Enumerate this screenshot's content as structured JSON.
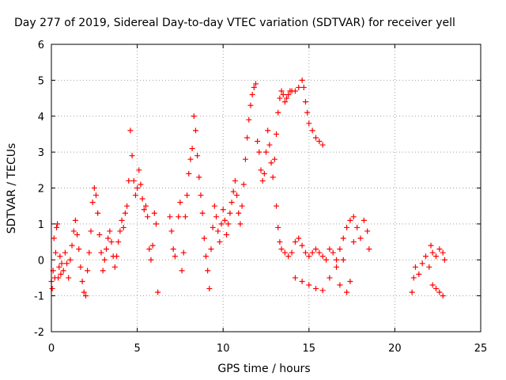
{
  "chart_data": {
    "type": "scatter",
    "title": "Day 277 of 2019, Sidereal Day-to-day VTEC variation (SDTVAR) for receiver yell",
    "xlabel": "GPS time / hours",
    "ylabel": "SDTVAR / TECUs",
    "xlim": [
      0,
      25
    ],
    "ylim": [
      -2,
      6
    ],
    "xticks": [
      0,
      5,
      10,
      15,
      20,
      25
    ],
    "yticks": [
      -2,
      -1,
      0,
      1,
      2,
      3,
      4,
      5,
      6
    ],
    "xtick_labels": [
      "0",
      "5",
      "10",
      "15",
      "20",
      "25"
    ],
    "ytick_labels": [
      "-2",
      "-1",
      "0",
      "1",
      "2",
      "3",
      "4",
      "5",
      "6"
    ],
    "grid": true,
    "marker": "+",
    "color": "#ff0000",
    "series": [
      {
        "name": "SDTVAR",
        "points": [
          [
            0.0,
            -0.6
          ],
          [
            0.05,
            -0.8
          ],
          [
            0.1,
            -0.3
          ],
          [
            0.15,
            0.6
          ],
          [
            0.2,
            -0.5
          ],
          [
            0.25,
            0.2
          ],
          [
            0.3,
            0.9
          ],
          [
            0.35,
            1.0
          ],
          [
            0.4,
            -0.5
          ],
          [
            0.45,
            -0.2
          ],
          [
            0.5,
            0.1
          ],
          [
            0.55,
            -0.4
          ],
          [
            0.6,
            -0.1
          ],
          [
            0.7,
            -0.3
          ],
          [
            0.8,
            0.2
          ],
          [
            0.9,
            -0.1
          ],
          [
            1.0,
            -0.5
          ],
          [
            1.1,
            0.0
          ],
          [
            1.2,
            0.4
          ],
          [
            1.3,
            0.8
          ],
          [
            1.4,
            1.1
          ],
          [
            1.5,
            0.7
          ],
          [
            1.6,
            0.3
          ],
          [
            1.7,
            -0.2
          ],
          [
            1.8,
            -0.6
          ],
          [
            1.9,
            -0.9
          ],
          [
            2.0,
            -1.0
          ],
          [
            2.1,
            -0.3
          ],
          [
            2.2,
            0.2
          ],
          [
            2.3,
            0.8
          ],
          [
            2.4,
            1.6
          ],
          [
            2.5,
            2.0
          ],
          [
            2.6,
            1.8
          ],
          [
            2.7,
            1.3
          ],
          [
            2.8,
            0.7
          ],
          [
            2.9,
            0.2
          ],
          [
            3.0,
            -0.3
          ],
          [
            3.1,
            0.0
          ],
          [
            3.2,
            0.3
          ],
          [
            3.3,
            0.6
          ],
          [
            3.4,
            0.8
          ],
          [
            3.5,
            0.5
          ],
          [
            3.6,
            0.1
          ],
          [
            3.7,
            -0.2
          ],
          [
            3.8,
            0.1
          ],
          [
            3.9,
            0.5
          ],
          [
            4.0,
            0.8
          ],
          [
            4.1,
            1.1
          ],
          [
            4.2,
            0.9
          ],
          [
            4.3,
            1.3
          ],
          [
            4.4,
            1.5
          ],
          [
            4.5,
            2.2
          ],
          [
            4.6,
            3.6
          ],
          [
            4.7,
            2.9
          ],
          [
            4.8,
            2.2
          ],
          [
            4.9,
            1.8
          ],
          [
            5.0,
            2.0
          ],
          [
            5.1,
            2.5
          ],
          [
            5.2,
            2.1
          ],
          [
            5.3,
            1.7
          ],
          [
            5.4,
            1.4
          ],
          [
            5.5,
            1.5
          ],
          [
            5.6,
            1.2
          ],
          [
            5.7,
            0.3
          ],
          [
            5.8,
            0.0
          ],
          [
            5.9,
            0.4
          ],
          [
            6.0,
            1.3
          ],
          [
            6.1,
            1.0
          ],
          [
            6.2,
            -0.9
          ],
          [
            6.9,
            1.2
          ],
          [
            7.0,
            0.8
          ],
          [
            7.1,
            0.3
          ],
          [
            7.2,
            0.1
          ],
          [
            7.4,
            1.2
          ],
          [
            7.5,
            1.6
          ],
          [
            7.6,
            -0.3
          ],
          [
            7.7,
            0.2
          ],
          [
            7.8,
            1.2
          ],
          [
            7.9,
            1.8
          ],
          [
            8.0,
            2.4
          ],
          [
            8.1,
            2.8
          ],
          [
            8.2,
            3.1
          ],
          [
            8.3,
            4.0
          ],
          [
            8.4,
            3.6
          ],
          [
            8.5,
            2.9
          ],
          [
            8.6,
            2.3
          ],
          [
            8.7,
            1.8
          ],
          [
            8.8,
            1.3
          ],
          [
            8.9,
            0.6
          ],
          [
            9.0,
            0.1
          ],
          [
            9.1,
            -0.3
          ],
          [
            9.2,
            -0.8
          ],
          [
            9.3,
            0.3
          ],
          [
            9.4,
            0.9
          ],
          [
            9.5,
            1.5
          ],
          [
            9.6,
            1.2
          ],
          [
            9.7,
            0.8
          ],
          [
            9.8,
            0.5
          ],
          [
            9.9,
            1.0
          ],
          [
            10.0,
            1.4
          ],
          [
            10.1,
            1.1
          ],
          [
            10.2,
            0.7
          ],
          [
            10.3,
            1.0
          ],
          [
            10.4,
            1.3
          ],
          [
            10.5,
            1.6
          ],
          [
            10.6,
            1.9
          ],
          [
            10.7,
            2.2
          ],
          [
            10.8,
            1.8
          ],
          [
            10.9,
            1.3
          ],
          [
            11.0,
            1.0
          ],
          [
            11.1,
            1.5
          ],
          [
            11.2,
            2.1
          ],
          [
            11.3,
            2.8
          ],
          [
            11.4,
            3.4
          ],
          [
            11.5,
            3.9
          ],
          [
            11.6,
            4.3
          ],
          [
            11.7,
            4.6
          ],
          [
            11.8,
            4.8
          ],
          [
            11.9,
            4.9
          ],
          [
            12.0,
            3.3
          ],
          [
            12.1,
            3.0
          ],
          [
            12.2,
            2.5
          ],
          [
            12.3,
            2.2
          ],
          [
            12.4,
            2.4
          ],
          [
            12.5,
            3.0
          ],
          [
            12.6,
            3.6
          ],
          [
            12.7,
            3.2
          ],
          [
            12.8,
            2.7
          ],
          [
            12.9,
            2.3
          ],
          [
            13.0,
            2.8
          ],
          [
            13.1,
            3.5
          ],
          [
            13.2,
            4.1
          ],
          [
            13.3,
            4.5
          ],
          [
            13.4,
            4.7
          ],
          [
            13.5,
            4.6
          ],
          [
            13.6,
            4.4
          ],
          [
            13.7,
            4.5
          ],
          [
            13.8,
            4.6
          ],
          [
            13.9,
            4.7
          ],
          [
            14.0,
            4.7
          ],
          [
            14.2,
            4.7
          ],
          [
            14.4,
            4.8
          ],
          [
            14.6,
            5.0
          ],
          [
            14.7,
            4.8
          ],
          [
            14.8,
            4.4
          ],
          [
            14.9,
            4.1
          ],
          [
            15.0,
            3.8
          ],
          [
            15.2,
            3.6
          ],
          [
            15.4,
            3.4
          ],
          [
            15.6,
            3.3
          ],
          [
            15.8,
            3.2
          ],
          [
            13.1,
            1.5
          ],
          [
            13.2,
            0.9
          ],
          [
            13.3,
            0.5
          ],
          [
            13.4,
            0.3
          ],
          [
            13.6,
            0.2
          ],
          [
            13.8,
            0.1
          ],
          [
            14.0,
            0.2
          ],
          [
            14.2,
            0.5
          ],
          [
            14.4,
            0.6
          ],
          [
            14.6,
            0.4
          ],
          [
            14.8,
            0.2
          ],
          [
            15.0,
            0.1
          ],
          [
            15.2,
            0.2
          ],
          [
            15.4,
            0.3
          ],
          [
            15.6,
            0.2
          ],
          [
            15.8,
            0.1
          ],
          [
            16.0,
            0.0
          ],
          [
            16.2,
            0.3
          ],
          [
            16.4,
            0.2
          ],
          [
            16.6,
            0.0
          ],
          [
            16.8,
            0.3
          ],
          [
            17.0,
            0.6
          ],
          [
            17.2,
            0.9
          ],
          [
            17.4,
            1.1
          ],
          [
            17.6,
            1.2
          ],
          [
            17.8,
            0.9
          ],
          [
            18.0,
            0.6
          ],
          [
            18.2,
            1.1
          ],
          [
            18.4,
            0.8
          ],
          [
            18.5,
            0.3
          ],
          [
            14.2,
            -0.5
          ],
          [
            14.6,
            -0.6
          ],
          [
            15.0,
            -0.7
          ],
          [
            15.4,
            -0.8
          ],
          [
            15.8,
            -0.85
          ],
          [
            16.2,
            -0.5
          ],
          [
            16.6,
            -0.2
          ],
          [
            17.0,
            0.0
          ],
          [
            16.8,
            -0.7
          ],
          [
            17.2,
            -0.9
          ],
          [
            17.4,
            -0.6
          ],
          [
            17.6,
            0.5
          ],
          [
            21.0,
            -0.9
          ],
          [
            21.1,
            -0.5
          ],
          [
            21.2,
            -0.2
          ],
          [
            21.4,
            -0.4
          ],
          [
            21.6,
            -0.1
          ],
          [
            21.8,
            0.1
          ],
          [
            22.0,
            -0.2
          ],
          [
            22.1,
            0.4
          ],
          [
            22.2,
            0.2
          ],
          [
            22.4,
            0.1
          ],
          [
            22.6,
            0.3
          ],
          [
            22.8,
            0.2
          ],
          [
            22.9,
            0.0
          ],
          [
            22.2,
            -0.7
          ],
          [
            22.4,
            -0.8
          ],
          [
            22.6,
            -0.9
          ],
          [
            22.8,
            -1.0
          ]
        ]
      }
    ]
  }
}
